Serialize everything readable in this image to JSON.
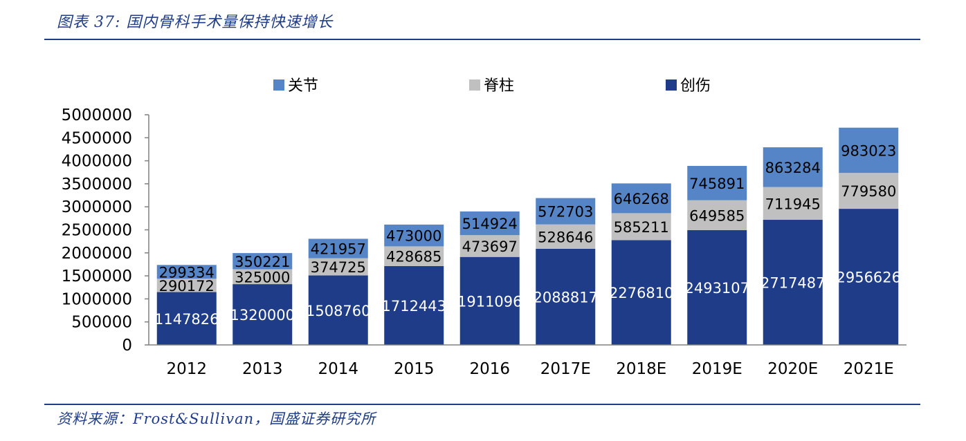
{
  "header": {
    "title": "图表 37:  国内骨科手术量保持快速增长"
  },
  "footer": {
    "source": "资料来源：Frost&Sullivan，国盛证券研究所"
  },
  "chart_data": {
    "type": "bar",
    "stacked": true,
    "categories": [
      "2012",
      "2013",
      "2014",
      "2015",
      "2016",
      "2017E",
      "2018E",
      "2019E",
      "2020E",
      "2021E"
    ],
    "series": [
      {
        "name": "创伤",
        "color": "#1f3c88",
        "label_color": "#ffffff",
        "values": [
          1147826,
          1320000,
          1508760,
          1712443,
          1911096,
          2088817,
          2276810,
          2493107,
          2717487,
          2956626
        ]
      },
      {
        "name": "脊柱",
        "color": "#c0c0c0",
        "label_color": "#000000",
        "values": [
          290172,
          325000,
          374725,
          428685,
          473697,
          528646,
          585211,
          649585,
          711945,
          779580
        ]
      },
      {
        "name": "关节",
        "color": "#5585c6",
        "label_color": "#000000",
        "values": [
          299334,
          350221,
          421957,
          473000,
          514924,
          572703,
          646268,
          745891,
          863284,
          983023
        ]
      }
    ],
    "legend_order": [
      "关节",
      "脊柱",
      "创伤"
    ],
    "legend_position": "top",
    "ylim": [
      0,
      5000000
    ],
    "yticks": [
      0,
      500000,
      1000000,
      1500000,
      2000000,
      2500000,
      3000000,
      3500000,
      4000000,
      4500000,
      5000000
    ],
    "grid": false,
    "xlabel": "",
    "ylabel": ""
  }
}
